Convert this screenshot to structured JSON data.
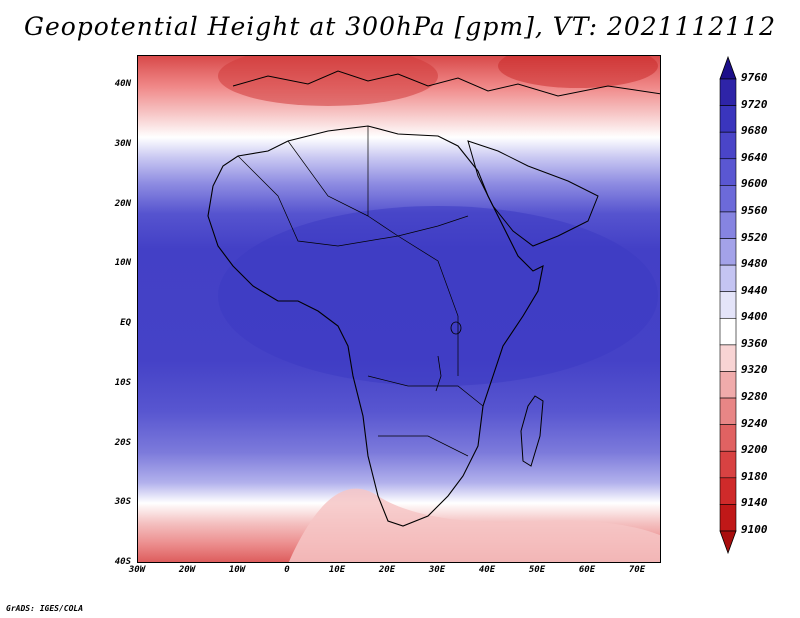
{
  "title": "Geopotential Height at 300hPa [gpm], VT: 2021112112",
  "credit": "GrADS: IGES/COLA",
  "map": {
    "lat_labels": [
      "40N",
      "30N",
      "20N",
      "10N",
      "EQ",
      "10S",
      "20S",
      "30S",
      "40S"
    ],
    "lon_labels": [
      "30W",
      "20W",
      "10W",
      "0",
      "10E",
      "20E",
      "30E",
      "40E",
      "50E",
      "60E",
      "70E"
    ]
  },
  "colorbar": {
    "levels": [
      "9760",
      "9720",
      "9680",
      "9640",
      "9600",
      "9560",
      "9520",
      "9480",
      "9440",
      "9400",
      "9360",
      "9320",
      "9280",
      "9240",
      "9200",
      "9180",
      "9140",
      "9100"
    ],
    "colors": [
      "#1c0f8a",
      "#2e24a8",
      "#3a35bd",
      "#4a45c8",
      "#5a57d2",
      "#6c6ad9",
      "#8684e1",
      "#a3a2e9",
      "#c4c4f2",
      "#e4e4f9",
      "#ffffff",
      "#f8d4d4",
      "#f0abab",
      "#e88686",
      "#e06262",
      "#d84242",
      "#cf2a2a",
      "#c01818",
      "#a80d0d"
    ]
  }
}
